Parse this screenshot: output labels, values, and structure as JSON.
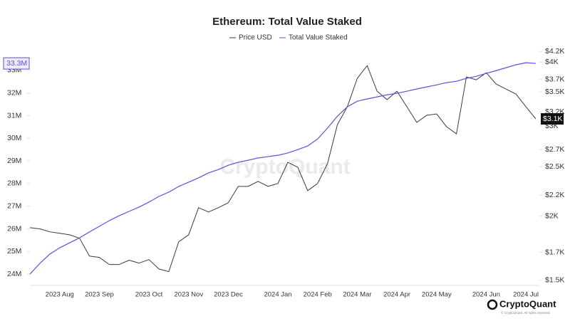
{
  "chart_data": {
    "type": "line",
    "title": "Ethereum: Total Value Staked",
    "watermark": "CryptoQuant",
    "brand": "CryptoQuant",
    "copyright": "© CryptoQuant. All rights reserved.",
    "categories": [
      null,
      null,
      null,
      "2023 Aug",
      null,
      null,
      null,
      "2023 Sep",
      null,
      null,
      null,
      null,
      "2023 Oct",
      null,
      null,
      null,
      "2023 Nov",
      null,
      null,
      null,
      "2023 Dec",
      null,
      null,
      null,
      null,
      "2024 Jan",
      null,
      null,
      null,
      "2024 Feb",
      null,
      null,
      null,
      "2024 Mar",
      null,
      null,
      null,
      "2024 Apr",
      null,
      null,
      null,
      "2024 May",
      null,
      null,
      null,
      null,
      "2024 Jun",
      null,
      null,
      null,
      "2024 Jul",
      null
    ],
    "series": [
      {
        "name": "Price USD",
        "color": "#3a3a3a",
        "axis": "y2",
        "last_label": "$3.1K",
        "values": [
          1900,
          1890,
          1865,
          1853,
          1840,
          1812,
          1672,
          1662,
          1610,
          1610,
          1641,
          1620,
          1646,
          1578,
          1559,
          1783,
          1840,
          2079,
          2039,
          2079,
          2126,
          2288,
          2288,
          2340,
          2288,
          2318,
          2550,
          2494,
          2244,
          2318,
          2535,
          3022,
          3275,
          3720,
          3940,
          3511,
          3380,
          3511,
          3275,
          3051,
          3150,
          3170,
          2993,
          2898,
          3744,
          3696,
          3816,
          3626,
          3545,
          3466,
          3275,
          3100
        ]
      },
      {
        "name": "Total Value Staked",
        "color": "#5b52d6",
        "last_label": "33.3M",
        "values": [
          24000000,
          24470000,
          24880000,
          25160000,
          25380000,
          25600000,
          25860000,
          26110000,
          26360000,
          26580000,
          26770000,
          26960000,
          27180000,
          27430000,
          27620000,
          27870000,
          28060000,
          28250000,
          28470000,
          28620000,
          28810000,
          28940000,
          29030000,
          29130000,
          29190000,
          29250000,
          29350000,
          29500000,
          29660000,
          29970000,
          30450000,
          30980000,
          31390000,
          31640000,
          31740000,
          31830000,
          31920000,
          31990000,
          32080000,
          32180000,
          32270000,
          32360000,
          32460000,
          32520000,
          32650000,
          32740000,
          32870000,
          32990000,
          33120000,
          33250000,
          33340000,
          33310000
        ]
      }
    ],
    "ylim": [
      23530000,
      33910000
    ],
    "yticks": [
      {
        "value": 24000000,
        "label": "24M"
      },
      {
        "value": 25000000,
        "label": "25M"
      },
      {
        "value": 26000000,
        "label": "26M"
      },
      {
        "value": 27000000,
        "label": "27M"
      },
      {
        "value": 28000000,
        "label": "28M"
      },
      {
        "value": 29000000,
        "label": "29M"
      },
      {
        "value": 30000000,
        "label": "30M"
      },
      {
        "value": 31000000,
        "label": "31M"
      },
      {
        "value": 32000000,
        "label": "32M"
      },
      {
        "value": 33000000,
        "label": "33M"
      }
    ],
    "y2lim": [
      1470,
      4230
    ],
    "y2_log": true,
    "y2ticks": [
      {
        "value": 4200,
        "label": "$4.2K"
      },
      {
        "value": 4000,
        "label": "$4K"
      },
      {
        "value": 3700,
        "label": "$3.7K"
      },
      {
        "value": 3500,
        "label": "$3.5K"
      },
      {
        "value": 3200,
        "label": "$3.2K"
      },
      {
        "value": 3000,
        "label": "$3K"
      },
      {
        "value": 2700,
        "label": "$2.7K"
      },
      {
        "value": 2500,
        "label": "$2.5K"
      },
      {
        "value": 2200,
        "label": "$2.2K"
      },
      {
        "value": 2000,
        "label": "$2K"
      },
      {
        "value": 1700,
        "label": "$1.7K"
      },
      {
        "value": 1500,
        "label": "$1.5K"
      }
    ],
    "grid": false
  }
}
